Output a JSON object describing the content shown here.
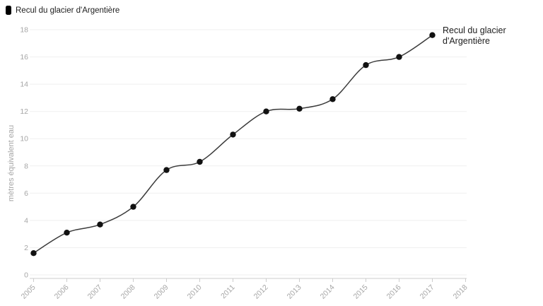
{
  "legend": {
    "label": "Recul du glacier d'Argentière"
  },
  "annotation": {
    "line1": "Recul du glacier",
    "line2": "d'Argentière"
  },
  "chart_data": {
    "type": "line",
    "title": "Recul du glacier d'Argentière",
    "categories": [
      2005,
      2006,
      2007,
      2008,
      2009,
      2010,
      2011,
      2012,
      2013,
      2014,
      2015,
      2016,
      2017
    ],
    "values": [
      1.6,
      3.1,
      3.7,
      5.0,
      7.7,
      8.3,
      10.3,
      12.0,
      12.2,
      12.9,
      15.4,
      16.0,
      17.6
    ],
    "series": [
      {
        "name": "Recul du glacier d'Argentière",
        "values": [
          1.6,
          3.1,
          3.7,
          5.0,
          7.7,
          8.3,
          10.3,
          12.0,
          12.2,
          12.9,
          15.4,
          16.0,
          17.6
        ]
      }
    ],
    "xlabel": "",
    "ylabel": "mètres équivalent eau",
    "ylim": [
      0,
      18
    ],
    "yticks": [
      0,
      2,
      4,
      6,
      8,
      10,
      12,
      14,
      16,
      18
    ],
    "xticks": [
      2005,
      2006,
      2007,
      2008,
      2009,
      2010,
      2011,
      2012,
      2013,
      2014,
      2015,
      2016,
      2017,
      2018
    ],
    "grid": "horizontal",
    "legend_position": "top-left",
    "annotation_position": "end-of-line",
    "colors": {
      "line": "#3b3b3b",
      "dot": "#111111",
      "grid": "#efefef",
      "axis": "#cccccc",
      "tick_label": "#a6a6a6",
      "text": "#1d1d1d",
      "background": "#ffffff"
    }
  }
}
